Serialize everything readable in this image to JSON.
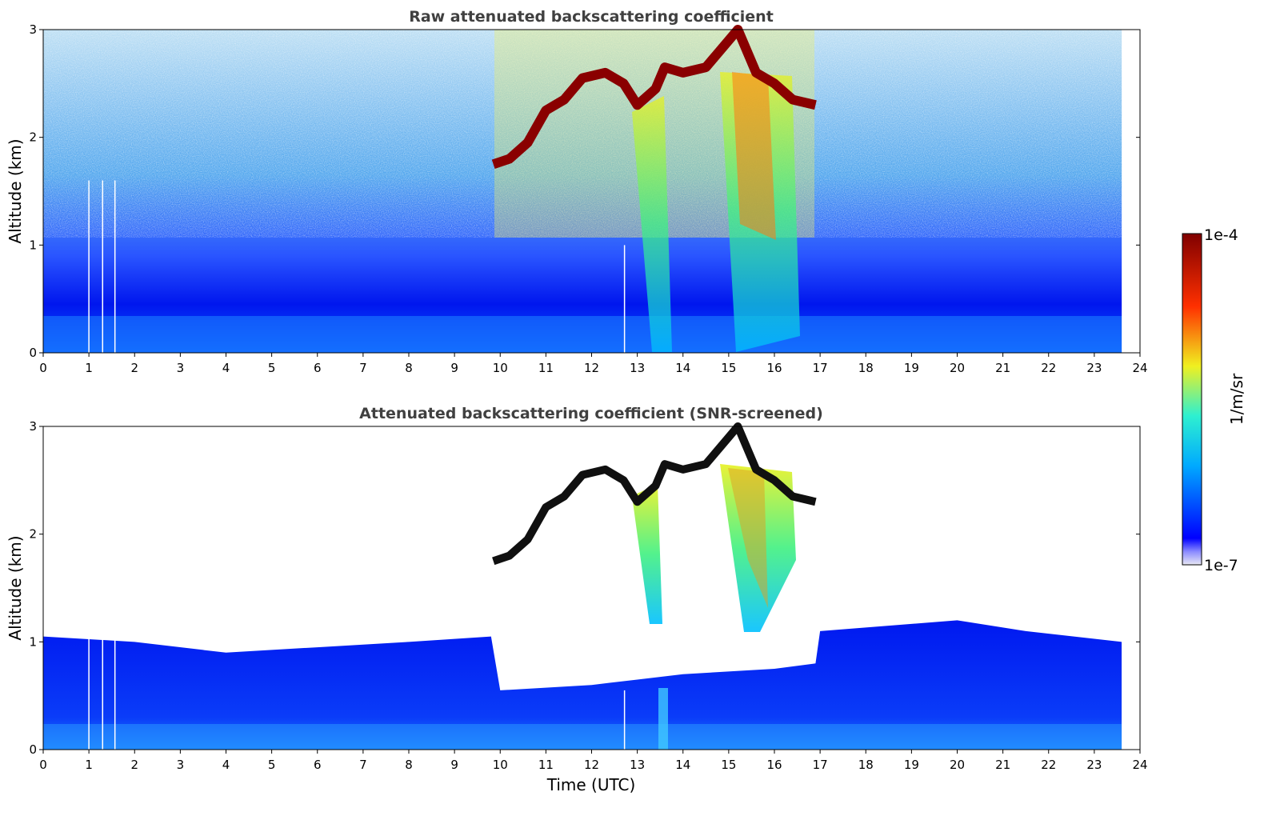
{
  "chart_data": [
    {
      "type": "heatmap",
      "title": "Raw attenuated backscattering coefficient",
      "xlabel": "",
      "ylabel": "Altitude (km)",
      "xlim": [
        0,
        24
      ],
      "ylim": [
        0,
        3
      ],
      "x_ticks": [
        "0",
        "1",
        "2",
        "3",
        "4",
        "5",
        "6",
        "7",
        "8",
        "9",
        "10",
        "11",
        "12",
        "13",
        "14",
        "15",
        "16",
        "17",
        "18",
        "19",
        "20",
        "21",
        "22",
        "23",
        "24"
      ],
      "y_ticks": [
        "0",
        "1",
        "2",
        "3"
      ],
      "data_end_time": 23.6,
      "gaps_time": [
        1.0,
        1.3,
        1.57,
        12.72
      ],
      "cloud_layer_top": {
        "time": [
          9.85,
          10.2,
          10.6,
          11.0,
          11.4,
          11.8,
          12.3,
          12.7,
          13.0,
          13.4,
          13.6,
          14.0,
          14.5,
          15.0,
          15.2,
          15.6,
          16.0,
          16.4,
          16.9
        ],
        "altitude_km": [
          1.75,
          1.8,
          1.95,
          2.25,
          2.35,
          2.55,
          2.6,
          2.5,
          2.3,
          2.45,
          2.65,
          2.6,
          2.65,
          2.9,
          3.0,
          2.6,
          2.5,
          2.35,
          2.3
        ]
      }
    },
    {
      "type": "heatmap",
      "title": "Attenuated backscattering coefficient (SNR-screened)",
      "xlabel": "Time (UTC)",
      "ylabel": "Altitude (km)",
      "xlim": [
        0,
        24
      ],
      "ylim": [
        0,
        3
      ],
      "x_ticks": [
        "0",
        "1",
        "2",
        "3",
        "4",
        "5",
        "6",
        "7",
        "8",
        "9",
        "10",
        "11",
        "12",
        "13",
        "14",
        "15",
        "16",
        "17",
        "18",
        "19",
        "20",
        "21",
        "22",
        "23",
        "24"
      ],
      "y_ticks": [
        "0",
        "1",
        "2",
        "3"
      ],
      "boundary_layer_top": {
        "time": [
          0,
          2,
          4,
          6,
          8,
          9.8,
          10.0,
          12.0,
          13.0,
          14.0,
          16.0,
          16.9,
          17.0,
          18.5,
          20.0,
          21.5,
          23.6
        ],
        "altitude_km": [
          1.05,
          1.0,
          0.9,
          0.95,
          1.0,
          1.05,
          0.55,
          0.6,
          0.65,
          0.7,
          0.75,
          0.8,
          1.1,
          1.15,
          1.2,
          1.1,
          1.0
        ]
      }
    }
  ],
  "colorbar": {
    "label": "1/m/sr",
    "max_label": "1e-4",
    "min_label": "1e-7",
    "scale": "log",
    "colormap": "jet",
    "colors": [
      "#e8e8f4",
      "#0000ff",
      "#00aaff",
      "#2ef0d0",
      "#f0f020",
      "#ff3000",
      "#800000"
    ]
  }
}
